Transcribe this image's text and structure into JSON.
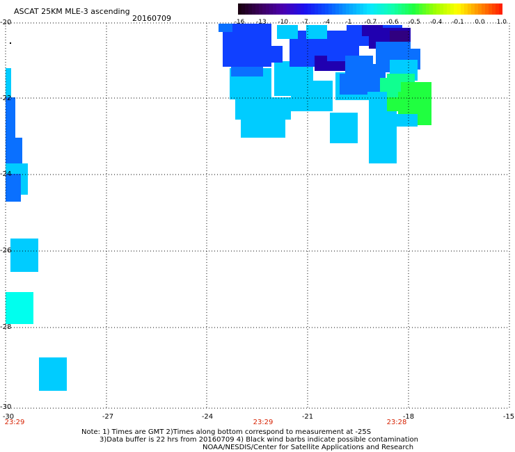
{
  "header": {
    "title": "ASCAT 25KM MLE-3 ascending",
    "date": "20160709"
  },
  "colorbar": {
    "labels": [
      "-16",
      "-13",
      "-10",
      "-7",
      "-4",
      "-1",
      "-0.7",
      "-0.6",
      "-0.5",
      "-0.4",
      "-0.1",
      "0.0",
      "1.0"
    ],
    "colors": [
      "#1a0012",
      "#3c0060",
      "#4a00b0",
      "#1a10f0",
      "#0a50ff",
      "#08a0ff",
      "#08e8ff",
      "#10ffb0",
      "#20ff40",
      "#a0ff00",
      "#ffff00",
      "#ff9000",
      "#ff2000"
    ]
  },
  "axes": {
    "y_labels": [
      "-20",
      "-22",
      "-24",
      "-26",
      "-28",
      "-30"
    ],
    "x_labels": [
      "-30",
      "-27",
      "-24",
      "-21",
      "-18",
      "-15"
    ],
    "time_labels": [
      "23:29",
      "23:29",
      "23:28"
    ]
  },
  "notes": {
    "line1": "Note: 1) Times are GMT 2)Times along bottom correspond to measurement at -25S",
    "line2": "3)Data buffer is 22 hrs from 20160709 4) Black wind barbs indicate possible contamination",
    "line3": "NOAA/NESDIS/Center for Satellite Applications and Research"
  },
  "palette": {
    "cyan": "#00ccff",
    "aqua": "#00ffee",
    "blue": "#1040ff",
    "midblue": "#0a70ff",
    "violet": "#2000b0",
    "purple": "#300080",
    "green": "#20ff40",
    "seagreen": "#10ff90",
    "timecolor": "#d62000"
  }
}
